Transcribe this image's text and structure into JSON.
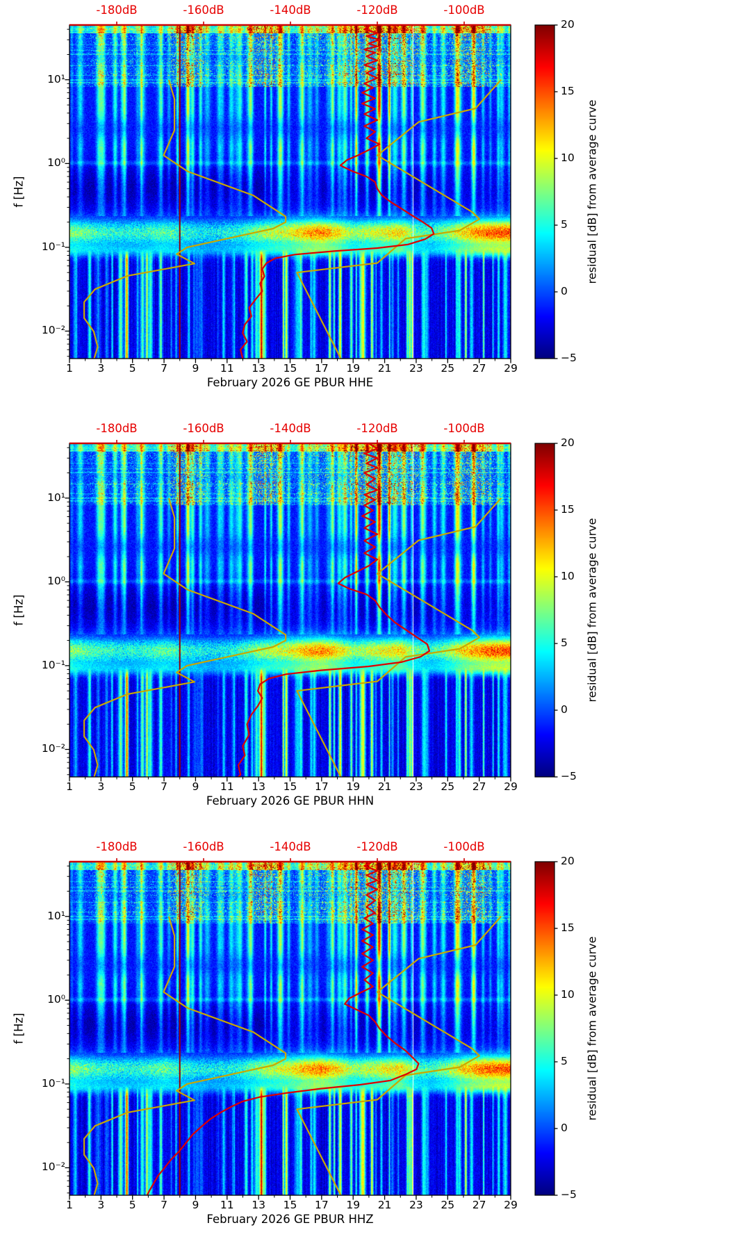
{
  "figure": {
    "background": "#ffffff",
    "n_panels": 3,
    "station": "GE PBUR",
    "month": "February 2026"
  },
  "overlays": {
    "colors": {
      "mode_curve": "#dd0000",
      "noise_models": "#c9a800",
      "marker": "#990000",
      "top_axis": "#cc0000"
    },
    "marker_day": 8,
    "data_gap_day": 22.78,
    "nlnm_f_db": [
      [
        10,
        -168
      ],
      [
        5.88,
        -166.7
      ],
      [
        2.5,
        -166.7
      ],
      [
        1.25,
        -169.2
      ],
      [
        0.806,
        -163.7
      ],
      [
        0.417,
        -148.6
      ],
      [
        0.233,
        -141.1
      ],
      [
        0.2,
        -141.1
      ],
      [
        0.167,
        -144
      ],
      [
        0.1,
        -163.8
      ],
      [
        0.083,
        -166.2
      ],
      [
        0.064,
        -162.1
      ],
      [
        0.0457,
        -177.5
      ],
      [
        0.0316,
        -185
      ],
      [
        0.0222,
        -187.5
      ],
      [
        0.0143,
        -187.5
      ],
      [
        0.0099,
        -185.3
      ],
      [
        0.0065,
        -184.4
      ],
      [
        0.0047,
        -185.2
      ]
    ],
    "nhnm_f_db": [
      [
        10,
        -91.5
      ],
      [
        4.55,
        -97.4
      ],
      [
        3.13,
        -110.5
      ],
      [
        1.25,
        -120
      ],
      [
        0.263,
        -98.1
      ],
      [
        0.217,
        -96.5
      ],
      [
        0.159,
        -101
      ],
      [
        0.127,
        -113.5
      ],
      [
        0.0649,
        -120
      ],
      [
        0.05,
        -138.5
      ],
      [
        0.0047,
        -128.4
      ]
    ]
  },
  "texture": {
    "microseism_intensity_by_day": [
      7,
      6,
      5,
      4.5,
      4.5,
      5,
      6,
      5,
      4,
      3.5,
      4,
      5,
      7,
      8,
      9,
      11,
      12,
      10,
      7,
      8,
      9,
      10,
      6,
      5,
      7,
      10,
      12,
      13,
      13
    ],
    "high_freq_burst_by_day": [
      0.2,
      0.25,
      0.45,
      0.3,
      0.45,
      0.3,
      0.3,
      1.0,
      0.85,
      0.35,
      0.5,
      0.35,
      1.0,
      0.9,
      0.35,
      0.45,
      0.6,
      0.5,
      0.9,
      1.0,
      1.0,
      1.0,
      0.8,
      0.3,
      0.5,
      0.9,
      1.0,
      0.45,
      0.3
    ],
    "low_freq_stripe_by_day": [
      2,
      3,
      6,
      8,
      9,
      8,
      6,
      3,
      4,
      5,
      4,
      5,
      9,
      10,
      8,
      3,
      6,
      8,
      9,
      9,
      8,
      9,
      7,
      3,
      4,
      8,
      9,
      8,
      5
    ]
  },
  "chart_data": [
    {
      "type": "heatmap",
      "channel": "HHE",
      "xlabel": "February 2026 GE PBUR  HHE",
      "ylabel": "f [Hz]",
      "day_range": [
        1,
        29
      ],
      "freq_range_hz": [
        0.0047,
        45
      ],
      "x_ticks": [
        1,
        3,
        5,
        7,
        9,
        11,
        13,
        15,
        17,
        19,
        21,
        23,
        25,
        27,
        29
      ],
      "y_tick_labels": [
        "10¹",
        "10⁰",
        "10⁻¹",
        "10⁻²"
      ],
      "y_tick_values": [
        10,
        1,
        0.1,
        0.01
      ],
      "psd_axis": {
        "labels": [
          "-180dB",
          "-160dB",
          "-140dB",
          "-120dB",
          "-100dB"
        ],
        "values": [
          -180,
          -160,
          -140,
          -120,
          -100
        ]
      },
      "colorbar": {
        "label": "residual [dB] from average curve",
        "tick_labels": [
          "20",
          "15",
          "10",
          "5",
          "0",
          "−5"
        ],
        "tick_values": [
          20,
          15,
          10,
          5,
          0,
          -5
        ],
        "min": -5,
        "max": 20,
        "colormap": "jet"
      },
      "mode_curve_f_db": [
        [
          45,
          -121.5
        ],
        [
          40,
          -123
        ],
        [
          36,
          -120
        ],
        [
          33,
          -122.5
        ],
        [
          30,
          -119.5
        ],
        [
          27,
          -122
        ],
        [
          25,
          -120
        ],
        [
          23,
          -123
        ],
        [
          21,
          -120.5
        ],
        [
          19,
          -122.5
        ],
        [
          17,
          -120
        ],
        [
          15,
          -123
        ],
        [
          13.5,
          -120.5
        ],
        [
          12,
          -122.5
        ],
        [
          10.5,
          -120
        ],
        [
          9,
          -123
        ],
        [
          8,
          -121
        ],
        [
          7,
          -123.5
        ],
        [
          6,
          -120.5
        ],
        [
          5.2,
          -123.5
        ],
        [
          4.5,
          -120.5
        ],
        [
          3.9,
          -123
        ],
        [
          3.3,
          -120
        ],
        [
          2.8,
          -123
        ],
        [
          2.4,
          -120.5
        ],
        [
          2.0,
          -122.5
        ],
        [
          1.7,
          -119.5
        ],
        [
          1.45,
          -122
        ],
        [
          1.25,
          -124.5
        ],
        [
          1.1,
          -127
        ],
        [
          0.95,
          -128.5
        ],
        [
          0.82,
          -126
        ],
        [
          0.7,
          -122.5
        ],
        [
          0.6,
          -120.5
        ],
        [
          0.5,
          -120
        ],
        [
          0.42,
          -119
        ],
        [
          0.35,
          -117
        ],
        [
          0.29,
          -114.5
        ],
        [
          0.24,
          -112
        ],
        [
          0.2,
          -109.5
        ],
        [
          0.17,
          -107.5
        ],
        [
          0.145,
          -107
        ],
        [
          0.125,
          -109
        ],
        [
          0.108,
          -113
        ],
        [
          0.098,
          -120
        ],
        [
          0.09,
          -130
        ],
        [
          0.082,
          -139
        ],
        [
          0.074,
          -143.5
        ],
        [
          0.065,
          -145.5
        ],
        [
          0.055,
          -146.5
        ],
        [
          0.045,
          -146
        ],
        [
          0.037,
          -147
        ],
        [
          0.03,
          -146.5
        ],
        [
          0.024,
          -148
        ],
        [
          0.019,
          -149.5
        ],
        [
          0.015,
          -149
        ],
        [
          0.012,
          -150.5
        ],
        [
          0.0095,
          -151
        ],
        [
          0.0075,
          -150
        ],
        [
          0.006,
          -151.5
        ],
        [
          0.0047,
          -151
        ]
      ]
    },
    {
      "type": "heatmap",
      "channel": "HHN",
      "xlabel": "February 2026 GE PBUR  HHN",
      "ylabel": "f [Hz]",
      "day_range": [
        1,
        29
      ],
      "freq_range_hz": [
        0.0047,
        45
      ],
      "x_ticks": [
        1,
        3,
        5,
        7,
        9,
        11,
        13,
        15,
        17,
        19,
        21,
        23,
        25,
        27,
        29
      ],
      "y_tick_labels": [
        "10¹",
        "10⁰",
        "10⁻¹",
        "10⁻²"
      ],
      "y_tick_values": [
        10,
        1,
        0.1,
        0.01
      ],
      "psd_axis": {
        "labels": [
          "-180dB",
          "-160dB",
          "-140dB",
          "-120dB",
          "-100dB"
        ],
        "values": [
          -180,
          -160,
          -140,
          -120,
          -100
        ]
      },
      "colorbar": {
        "label": "residual [dB] from average curve",
        "tick_labels": [
          "20",
          "15",
          "10",
          "5",
          "0",
          "−5"
        ],
        "tick_values": [
          20,
          15,
          10,
          5,
          0,
          -5
        ],
        "min": -5,
        "max": 20,
        "colormap": "jet"
      },
      "mode_curve_f_db": [
        [
          45,
          -122
        ],
        [
          39,
          -120
        ],
        [
          34,
          -123
        ],
        [
          30,
          -120
        ],
        [
          26,
          -122.5
        ],
        [
          23,
          -120
        ],
        [
          20,
          -123
        ],
        [
          17,
          -120.5
        ],
        [
          14.5,
          -122.5
        ],
        [
          12.5,
          -120
        ],
        [
          11,
          -123
        ],
        [
          9.5,
          -120.5
        ],
        [
          8.2,
          -123
        ],
        [
          7.1,
          -121
        ],
        [
          6.1,
          -123.5
        ],
        [
          5.2,
          -120.5
        ],
        [
          4.4,
          -123
        ],
        [
          3.7,
          -120
        ],
        [
          3.1,
          -123
        ],
        [
          2.6,
          -120.5
        ],
        [
          2.2,
          -123
        ],
        [
          1.85,
          -120
        ],
        [
          1.55,
          -122
        ],
        [
          1.3,
          -125
        ],
        [
          1.12,
          -127.5
        ],
        [
          0.96,
          -129
        ],
        [
          0.83,
          -126.5
        ],
        [
          0.71,
          -122.5
        ],
        [
          0.6,
          -120.5
        ],
        [
          0.5,
          -119.5
        ],
        [
          0.41,
          -118
        ],
        [
          0.33,
          -116
        ],
        [
          0.27,
          -113.5
        ],
        [
          0.22,
          -111
        ],
        [
          0.18,
          -108.5
        ],
        [
          0.15,
          -108
        ],
        [
          0.128,
          -110
        ],
        [
          0.11,
          -114.5
        ],
        [
          0.098,
          -122
        ],
        [
          0.088,
          -133
        ],
        [
          0.079,
          -141
        ],
        [
          0.07,
          -145
        ],
        [
          0.06,
          -147
        ],
        [
          0.05,
          -147.5
        ],
        [
          0.041,
          -146.5
        ],
        [
          0.033,
          -147.5
        ],
        [
          0.026,
          -149
        ],
        [
          0.02,
          -150
        ],
        [
          0.015,
          -149.5
        ],
        [
          0.011,
          -151
        ],
        [
          0.0085,
          -150.5
        ],
        [
          0.0065,
          -152
        ],
        [
          0.005,
          -151.5
        ],
        [
          0.0047,
          -152
        ]
      ]
    },
    {
      "type": "heatmap",
      "channel": "HHZ",
      "xlabel": "February 2026 GE PBUR  HHZ",
      "ylabel": "f [Hz]",
      "day_range": [
        1,
        29
      ],
      "freq_range_hz": [
        0.0047,
        45
      ],
      "x_ticks": [
        1,
        3,
        5,
        7,
        9,
        11,
        13,
        15,
        17,
        19,
        21,
        23,
        25,
        27,
        29
      ],
      "y_tick_labels": [
        "10¹",
        "10⁰",
        "10⁻¹",
        "10⁻²"
      ],
      "y_tick_values": [
        10,
        1,
        0.1,
        0.01
      ],
      "psd_axis": {
        "labels": [
          "-180dB",
          "-160dB",
          "-140dB",
          "-120dB",
          "-100dB"
        ],
        "values": [
          -180,
          -160,
          -140,
          -120,
          -100
        ]
      },
      "colorbar": {
        "label": "residual [dB] from average curve",
        "tick_labels": [
          "20",
          "15",
          "10",
          "5",
          "0",
          "−5"
        ],
        "tick_values": [
          20,
          15,
          10,
          5,
          0,
          -5
        ],
        "min": -5,
        "max": 20,
        "colormap": "jet"
      },
      "mode_curve_f_db": [
        [
          45,
          -121
        ],
        [
          40,
          -123
        ],
        [
          35,
          -120
        ],
        [
          31,
          -122.5
        ],
        [
          27,
          -120
        ],
        [
          24,
          -122.5
        ],
        [
          21,
          -120
        ],
        [
          18,
          -122.5
        ],
        [
          15.5,
          -120.5
        ],
        [
          13,
          -122.5
        ],
        [
          11,
          -120.5
        ],
        [
          9.5,
          -123
        ],
        [
          8.2,
          -121
        ],
        [
          7,
          -123.5
        ],
        [
          6,
          -121
        ],
        [
          5.1,
          -123.5
        ],
        [
          4.3,
          -121
        ],
        [
          3.6,
          -123.5
        ],
        [
          3.0,
          -121
        ],
        [
          2.5,
          -123.5
        ],
        [
          2.1,
          -121
        ],
        [
          1.75,
          -123
        ],
        [
          1.45,
          -121
        ],
        [
          1.22,
          -124
        ],
        [
          1.05,
          -126.5
        ],
        [
          0.9,
          -127.5
        ],
        [
          0.78,
          -125
        ],
        [
          0.66,
          -122
        ],
        [
          0.55,
          -120.5
        ],
        [
          0.46,
          -119.5
        ],
        [
          0.38,
          -118
        ],
        [
          0.31,
          -116
        ],
        [
          0.25,
          -113.5
        ],
        [
          0.21,
          -112
        ],
        [
          0.175,
          -110.5
        ],
        [
          0.15,
          -111
        ],
        [
          0.13,
          -113.5
        ],
        [
          0.11,
          -117
        ],
        [
          0.098,
          -124
        ],
        [
          0.088,
          -133
        ],
        [
          0.078,
          -141
        ],
        [
          0.07,
          -147
        ],
        [
          0.062,
          -151
        ],
        [
          0.054,
          -153.5
        ],
        [
          0.046,
          -156
        ],
        [
          0.038,
          -158.5
        ],
        [
          0.031,
          -160.5
        ],
        [
          0.025,
          -162.5
        ],
        [
          0.02,
          -164
        ],
        [
          0.016,
          -165.5
        ],
        [
          0.0125,
          -167.5
        ],
        [
          0.01,
          -169
        ],
        [
          0.008,
          -170.5
        ],
        [
          0.0065,
          -171.5
        ],
        [
          0.0053,
          -172.5
        ],
        [
          0.0047,
          -173
        ]
      ]
    }
  ]
}
